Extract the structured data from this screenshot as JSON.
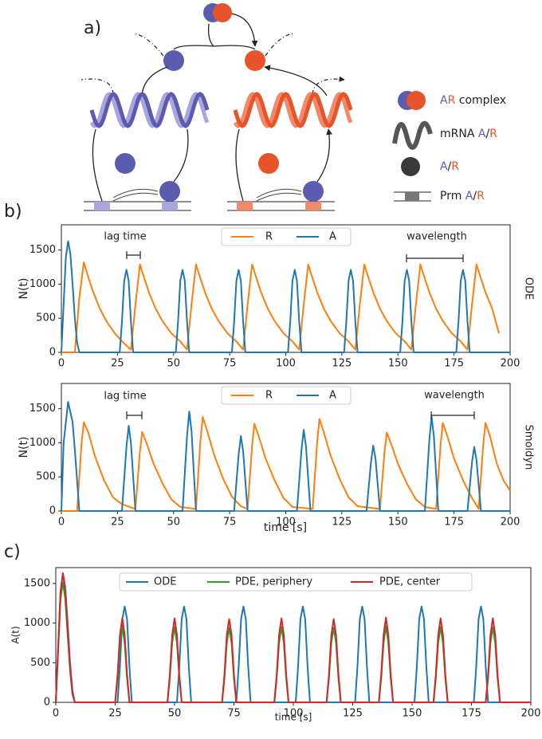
{
  "diagram": {
    "label": "a)",
    "legend": [
      {
        "a": "A",
        "r": "R",
        "label": "complex"
      },
      {
        "label": "mRNA",
        "a": "A",
        "sep": "/",
        "r": "R"
      },
      {
        "a": "A",
        "sep": "/",
        "r": "R"
      },
      {
        "label": "Prm",
        "a": "A",
        "sep": "/",
        "r": "R"
      }
    ]
  },
  "panel_labels": [
    "b)",
    "c)"
  ],
  "chart_data": [
    {
      "type": "line",
      "side_label": "ODE",
      "ylabel": "N(t)",
      "annotations": [
        "lag time",
        "wavelength"
      ],
      "xlim": [
        0,
        200
      ],
      "xticks": [
        0,
        25,
        50,
        75,
        100,
        125,
        150,
        175,
        200
      ],
      "ylim": [
        0,
        1870
      ],
      "yticks": [
        0,
        500,
        1000,
        1500
      ],
      "series": [
        {
          "name": "R",
          "color": "#ff7f0e",
          "x": [
            0,
            6,
            8,
            10,
            12,
            14,
            17,
            20,
            24,
            28,
            31,
            33,
            35,
            37,
            39,
            42,
            45,
            49,
            53,
            56,
            58,
            60,
            62,
            64,
            67,
            70,
            74,
            78,
            81,
            83,
            85,
            87,
            89,
            92,
            95,
            99,
            103,
            106,
            108,
            110,
            112,
            114,
            117,
            120,
            124,
            128,
            131,
            133,
            135,
            137,
            139,
            142,
            145,
            149,
            153,
            156,
            158,
            160,
            162,
            164,
            167,
            170,
            174,
            178,
            181,
            183,
            185,
            187,
            189,
            192,
            195
          ],
          "values": [
            0,
            0,
            800,
            1320,
            1100,
            900,
            650,
            460,
            270,
            130,
            40,
            700,
            1290,
            1080,
            880,
            640,
            460,
            280,
            160,
            40,
            700,
            1290,
            1080,
            880,
            640,
            460,
            280,
            160,
            40,
            700,
            1290,
            1080,
            880,
            640,
            460,
            280,
            160,
            40,
            700,
            1290,
            1080,
            880,
            640,
            460,
            280,
            160,
            40,
            700,
            1290,
            1080,
            880,
            640,
            460,
            280,
            160,
            40,
            700,
            1290,
            1080,
            880,
            640,
            460,
            280,
            160,
            40,
            700,
            1290,
            1080,
            880,
            640,
            280
          ]
        },
        {
          "name": "A",
          "color": "#1f77b4",
          "x": [
            0,
            1,
            2,
            3,
            4,
            5,
            6,
            7,
            8,
            26,
            27,
            28,
            29,
            30,
            31,
            32,
            51,
            52,
            53,
            54,
            55,
            56,
            57,
            76,
            77,
            78,
            79,
            80,
            81,
            82,
            101,
            102,
            103,
            104,
            105,
            106,
            107,
            126,
            127,
            128,
            129,
            130,
            131,
            132,
            151,
            152,
            153,
            154,
            155,
            156,
            157,
            176,
            177,
            178,
            179,
            180,
            181,
            182,
            200
          ],
          "values": [
            0,
            700,
            1400,
            1630,
            1450,
            1000,
            500,
            150,
            0,
            0,
            450,
            1050,
            1210,
            1050,
            450,
            0,
            0,
            450,
            1050,
            1210,
            1050,
            450,
            0,
            0,
            450,
            1050,
            1210,
            1050,
            450,
            0,
            0,
            450,
            1050,
            1210,
            1050,
            450,
            0,
            0,
            450,
            1050,
            1210,
            1050,
            450,
            0,
            0,
            450,
            1050,
            1210,
            1050,
            450,
            0,
            0,
            450,
            1050,
            1210,
            1050,
            450,
            0,
            0
          ]
        }
      ]
    },
    {
      "type": "line",
      "side_label": "Smoldyn",
      "ylabel": "N(t)",
      "xlabel": "time [s]",
      "annotations": [
        "lag time",
        "wavelength"
      ],
      "xlim": [
        0,
        200
      ],
      "xticks": [
        0,
        25,
        50,
        75,
        100,
        125,
        150,
        175,
        200
      ],
      "ylim": [
        0,
        1870
      ],
      "yticks": [
        0,
        500,
        1000,
        1500
      ],
      "series": [
        {
          "name": "R",
          "color": "#ff7f0e",
          "x": [
            0,
            7,
            9,
            10,
            12,
            15,
            19,
            23,
            27,
            33,
            35,
            36,
            38,
            41,
            45,
            49,
            53,
            60,
            62,
            63,
            65,
            68,
            72,
            76,
            80,
            83,
            85,
            86,
            88,
            91,
            95,
            99,
            103,
            112,
            114,
            115,
            117,
            120,
            124,
            128,
            132,
            142,
            144,
            145,
            147,
            150,
            154,
            158,
            162,
            167,
            169,
            170,
            172,
            175,
            179,
            183,
            186,
            188,
            189,
            191,
            194,
            197,
            200
          ],
          "values": [
            0,
            0,
            1000,
            1300,
            1150,
            800,
            450,
            200,
            100,
            30,
            870,
            1160,
            990,
            700,
            410,
            170,
            60,
            30,
            1040,
            1380,
            1170,
            830,
            480,
            210,
            70,
            30,
            960,
            1280,
            1090,
            770,
            450,
            190,
            60,
            30,
            1010,
            1350,
            1150,
            810,
            470,
            200,
            70,
            30,
            860,
            1150,
            980,
            690,
            400,
            170,
            60,
            30,
            970,
            1290,
            1100,
            770,
            450,
            190,
            30,
            970,
            1290,
            1100,
            700,
            450,
            300
          ]
        },
        {
          "name": "A",
          "color": "#1f77b4",
          "x": [
            0,
            1,
            3,
            5,
            6,
            8,
            27,
            29,
            30,
            31,
            33,
            54,
            56,
            57,
            58,
            60,
            77,
            79,
            80,
            81,
            83,
            105,
            107,
            108,
            109,
            111,
            136,
            138,
            139,
            140,
            142,
            162,
            164,
            165,
            166,
            168,
            181,
            183,
            184,
            185,
            187,
            200
          ],
          "values": [
            0,
            1000,
            1600,
            1300,
            900,
            0,
            0,
            940,
            1250,
            1000,
            0,
            0,
            1100,
            1460,
            1170,
            0,
            0,
            830,
            1100,
            880,
            0,
            0,
            890,
            1190,
            950,
            0,
            0,
            720,
            960,
            770,
            0,
            0,
            1040,
            1380,
            1100,
            0,
            0,
            710,
            940,
            750,
            0,
            0
          ]
        }
      ]
    },
    {
      "type": "line",
      "ylabel": "A(t)",
      "xlabel": "time [s]",
      "xlim": [
        0,
        200
      ],
      "xticks": [
        0,
        25,
        50,
        75,
        100,
        125,
        150,
        175,
        200
      ],
      "ylim": [
        0,
        1700
      ],
      "yticks": [
        0,
        500,
        1000,
        1500
      ],
      "series": [
        {
          "name": "ODE",
          "color": "#1f77b4",
          "x": [
            0,
            1,
            2,
            3,
            4,
            5,
            6,
            7,
            8,
            26,
            27,
            28,
            29,
            30,
            31,
            32,
            51,
            52,
            53,
            54,
            55,
            56,
            57,
            76,
            77,
            78,
            79,
            80,
            81,
            82,
            101,
            102,
            103,
            104,
            105,
            106,
            107,
            126,
            127,
            128,
            129,
            130,
            131,
            132,
            151,
            152,
            153,
            154,
            155,
            156,
            157,
            176,
            177,
            178,
            179,
            180,
            181,
            182,
            200
          ],
          "values": [
            0,
            700,
            1400,
            1630,
            1450,
            1000,
            500,
            150,
            0,
            0,
            450,
            1050,
            1210,
            1050,
            450,
            0,
            0,
            450,
            1050,
            1210,
            1050,
            450,
            0,
            0,
            450,
            1050,
            1210,
            1050,
            450,
            0,
            0,
            450,
            1050,
            1210,
            1050,
            450,
            0,
            0,
            450,
            1050,
            1210,
            1050,
            450,
            0,
            0,
            450,
            1050,
            1210,
            1050,
            450,
            0,
            0,
            450,
            1050,
            1210,
            1050,
            450,
            0,
            0
          ]
        },
        {
          "name": "PDE, periphery",
          "color": "#2ca02c",
          "x": [
            0,
            1,
            2,
            3,
            4,
            5,
            6,
            7,
            8,
            25,
            26,
            27,
            28,
            29,
            30,
            31,
            47,
            48,
            49,
            50,
            51,
            52,
            53,
            70,
            71,
            72,
            73,
            74,
            75,
            76,
            92,
            93,
            94,
            95,
            96,
            97,
            98,
            114,
            115,
            116,
            117,
            118,
            119,
            120,
            136,
            137,
            138,
            139,
            140,
            141,
            142,
            159,
            160,
            161,
            162,
            163,
            164,
            165,
            181,
            182,
            183,
            184,
            185,
            186,
            187,
            200
          ],
          "values": [
            0,
            650,
            1300,
            1510,
            1300,
            850,
            400,
            100,
            0,
            0,
            300,
            750,
            950,
            750,
            300,
            0,
            0,
            300,
            750,
            950,
            750,
            300,
            0,
            0,
            300,
            750,
            940,
            750,
            300,
            0,
            0,
            300,
            750,
            950,
            750,
            300,
            0,
            0,
            300,
            750,
            940,
            750,
            300,
            0,
            0,
            300,
            750,
            960,
            750,
            300,
            0,
            0,
            300,
            750,
            950,
            750,
            300,
            0,
            0,
            300,
            750,
            950,
            750,
            300,
            0,
            0
          ]
        },
        {
          "name": "PDE, center",
          "color": "#d62728",
          "x": [
            0,
            1,
            2,
            3,
            4,
            5,
            6,
            7,
            8,
            25,
            26,
            27,
            28,
            29,
            30,
            31,
            47,
            48,
            49,
            50,
            51,
            52,
            53,
            70,
            71,
            72,
            73,
            74,
            75,
            76,
            92,
            93,
            94,
            95,
            96,
            97,
            98,
            114,
            115,
            116,
            117,
            118,
            119,
            120,
            136,
            137,
            138,
            139,
            140,
            141,
            142,
            159,
            160,
            161,
            162,
            163,
            164,
            165,
            181,
            182,
            183,
            184,
            185,
            186,
            187,
            200
          ],
          "values": [
            0,
            700,
            1400,
            1630,
            1400,
            900,
            450,
            120,
            0,
            0,
            350,
            850,
            1060,
            850,
            350,
            0,
            0,
            350,
            850,
            1060,
            850,
            350,
            0,
            0,
            350,
            850,
            1050,
            850,
            350,
            0,
            0,
            350,
            850,
            1060,
            850,
            350,
            0,
            0,
            350,
            850,
            1050,
            850,
            350,
            0,
            0,
            350,
            850,
            1070,
            850,
            350,
            0,
            0,
            350,
            850,
            1060,
            850,
            350,
            0,
            0,
            350,
            850,
            1060,
            850,
            350,
            0,
            0
          ]
        }
      ]
    }
  ]
}
